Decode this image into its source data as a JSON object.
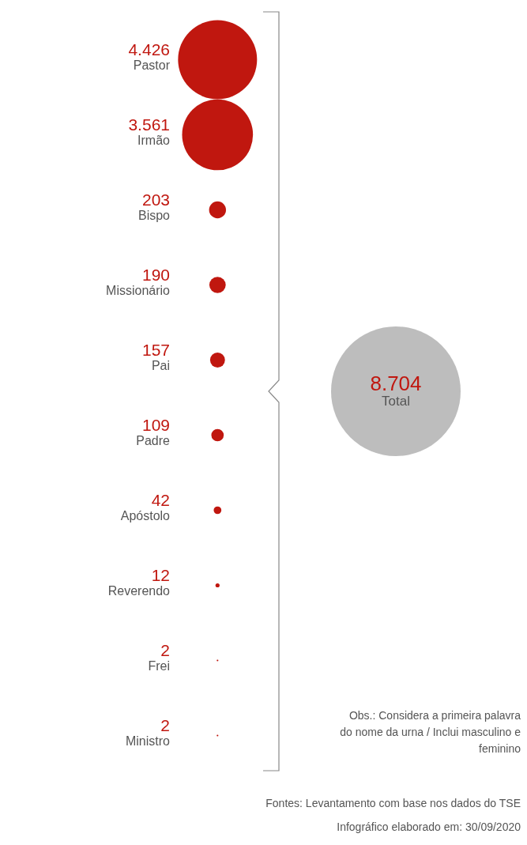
{
  "chart_data": {
    "type": "other",
    "categories": [
      "Pastor",
      "Irmão",
      "Bispo",
      "Missionário",
      "Pai",
      "Padre",
      "Apóstolo",
      "Reverendo",
      "Frei",
      "Ministro"
    ],
    "values": [
      4426,
      3561,
      203,
      190,
      157,
      109,
      42,
      12,
      2,
      2
    ],
    "value_labels": [
      "4.426",
      "3.561",
      "203",
      "190",
      "157",
      "109",
      "42",
      "12",
      "2",
      "2"
    ],
    "color": "#c0170f",
    "totals": [
      "8.704"
    ],
    "annotations": [
      "Total",
      "Obs.: Considera a primeira palavra do nome da urna / Inclui masculino e feminino",
      "Fontes: Levantamento com base nos dados do TSE",
      "Infográfico elaborado em: 30/09/2020"
    ]
  }
}
